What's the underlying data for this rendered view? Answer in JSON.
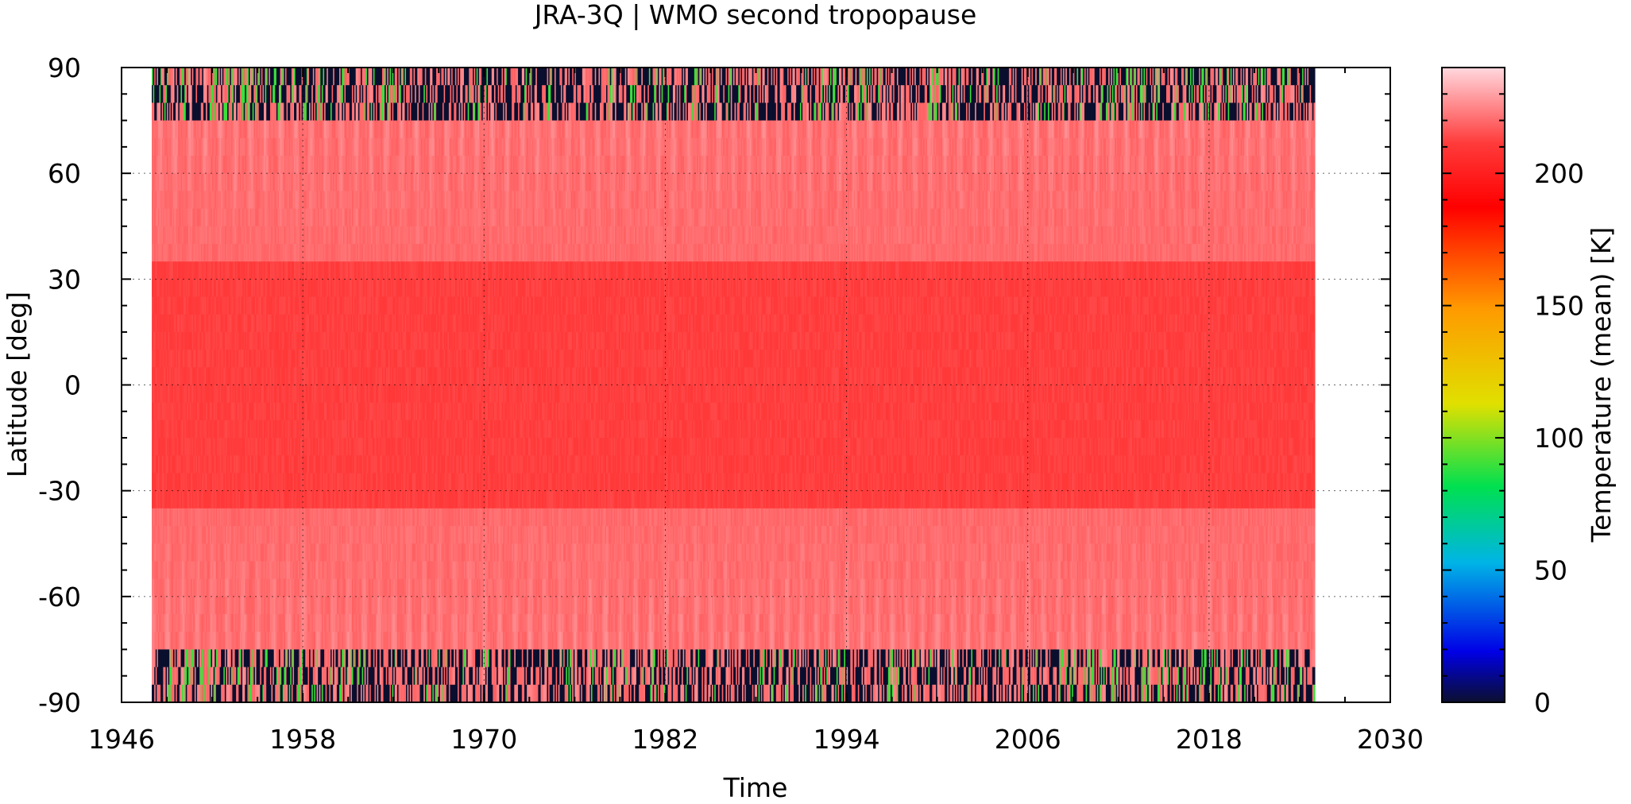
{
  "chart_data": {
    "type": "heatmap",
    "title": "JRA-3Q | WMO second tropopause",
    "xlabel": "Time",
    "ylabel": "Latitude [deg]",
    "colorbar_label": "Temperature (mean) [K]",
    "xlim": [
      1946,
      2030
    ],
    "ylim": [
      -90,
      90
    ],
    "x_ticks": [
      1946,
      1958,
      1970,
      1982,
      1994,
      2006,
      2018,
      2030
    ],
    "y_ticks": [
      90,
      60,
      30,
      0,
      -30,
      -60,
      -90
    ],
    "colorbar_ticks": [
      200,
      150,
      100,
      50,
      0
    ],
    "colorbar_range": [
      0,
      240
    ],
    "data_time_range": [
      1948,
      2025
    ],
    "grid": true,
    "colormap": [
      "#0b0f2e",
      "#0000ff",
      "#00c8ff",
      "#00e040",
      "#e0e000",
      "#ff9900",
      "#ff0000",
      "#ffd0d8"
    ],
    "field_description": {
      "tropics_value": 212,
      "midlatitude_value": 220,
      "polar_summer_value": 225,
      "missing_polar_value": 0,
      "seasonal_cycle": "annual"
    }
  }
}
